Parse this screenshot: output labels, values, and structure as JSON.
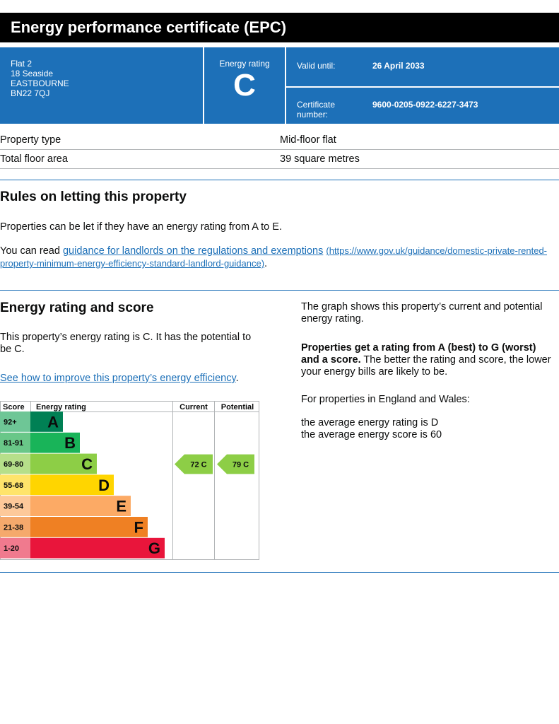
{
  "header": {
    "title": "Energy performance certificate (EPC)"
  },
  "summary": {
    "address": [
      "Flat 2",
      "18 Seaside",
      "EASTBOURNE",
      "BN22 7QJ"
    ],
    "energy_rating_label": "Energy rating",
    "energy_rating_value": "C",
    "valid_until_label": "Valid until:",
    "valid_until_value": "26 April 2033",
    "certificate_label_line1": "Certificate",
    "certificate_label_line2": "number:",
    "certificate_number": "9600-0205-0922-6227-3473"
  },
  "property": {
    "rows": [
      {
        "label": "Property type",
        "value": "Mid-floor flat"
      },
      {
        "label": "Total floor area",
        "value": "39 square metres"
      }
    ]
  },
  "letting": {
    "heading": "Rules on letting this property",
    "para1": "Properties can be let if they have an energy rating from A to E.",
    "para2_prefix": "You can read ",
    "link_text": "guidance for landlords on the regulations and exemptions",
    "link_url_line1": "(https://www.gov.uk/guidance/domestic-private-rented-",
    "link_url_line2": "property-minimum-energy-efficiency-standard-landlord-guidance)",
    "para2_suffix": "."
  },
  "rating": {
    "heading": "Energy rating and score",
    "para1_line1": "This property’s energy rating is C. It has the potential to",
    "para1_line2": "be C.",
    "improve_link": "See how to improve this property’s energy efficiency",
    "improve_suffix": ".",
    "right_p1_line1": "The graph shows this property’s current and potential",
    "right_p1_line2": "energy rating.",
    "right_p2_bold1": "Properties get a rating from A (best) to G (worst)",
    "right_p2_bold2": "and a score.",
    "right_p2_rest2": " The better the rating and score, the lower",
    "right_p2_line3": "your energy bills are likely to be.",
    "right_p3": "For properties in England and Wales:",
    "right_p4_line1": "the average energy rating is D",
    "right_p4_line2": "the average energy score is 60"
  },
  "chart_data": {
    "type": "bar",
    "headers": {
      "score": "Score",
      "rating": "Energy rating",
      "current": "Current",
      "potential": "Potential"
    },
    "bands": [
      {
        "score": "92+",
        "letter": "A",
        "color": "#008054",
        "score_color": "#6ec696"
      },
      {
        "score": "81-91",
        "letter": "B",
        "color": "#19b459",
        "score_color": "#69c788"
      },
      {
        "score": "69-80",
        "letter": "C",
        "color": "#8dce46",
        "score_color": "#b6df8a"
      },
      {
        "score": "55-68",
        "letter": "D",
        "color": "#ffd500",
        "score_color": "#ffe46b"
      },
      {
        "score": "39-54",
        "letter": "E",
        "color": "#fcaa65",
        "score_color": "#fdc99a"
      },
      {
        "score": "21-38",
        "letter": "F",
        "color": "#ef8023",
        "score_color": "#f5a96c"
      },
      {
        "score": "1-20",
        "letter": "G",
        "color": "#e9153b",
        "score_color": "#f07a8e"
      }
    ],
    "current": {
      "score": 72,
      "letter": "C",
      "label": "72  C",
      "color": "#8dce46"
    },
    "potential": {
      "score": 79,
      "letter": "C",
      "label": "79  C",
      "color": "#8dce46"
    }
  }
}
